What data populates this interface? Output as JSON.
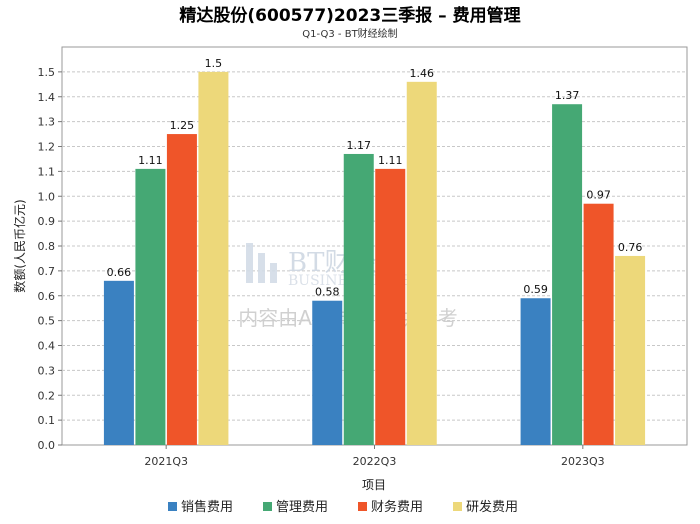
{
  "chart_data": {
    "type": "bar",
    "title": "精达股份(600577)2023三季报 – 费用管理",
    "subtitle": "Q1-Q3 - BT财经绘制",
    "xlabel": "项目",
    "ylabel": "数额(人民币亿元)",
    "ylim": [
      0,
      1.6
    ],
    "yticks": [
      "0.0",
      "0.1",
      "0.2",
      "0.3",
      "0.4",
      "0.5",
      "0.6",
      "0.7",
      "0.8",
      "0.9",
      "1.0",
      "1.1",
      "1.2",
      "1.3",
      "1.4",
      "1.5"
    ],
    "categories": [
      "2021Q3",
      "2022Q3",
      "2023Q3"
    ],
    "series": [
      {
        "name": "销售费用",
        "color": "#3a81c1",
        "values": [
          0.66,
          0.58,
          0.59
        ],
        "labels": [
          "0.66",
          "0.58",
          "0.59"
        ]
      },
      {
        "name": "管理费用",
        "color": "#45a874",
        "values": [
          1.11,
          1.17,
          1.37
        ],
        "labels": [
          "1.11",
          "1.17",
          "1.37"
        ]
      },
      {
        "name": "财务费用",
        "color": "#ef5529",
        "values": [
          1.25,
          1.11,
          0.97
        ],
        "labels": [
          "1.25",
          "1.11",
          "0.97"
        ]
      },
      {
        "name": "研发费用",
        "color": "#edd87a",
        "values": [
          1.5,
          1.46,
          0.76
        ],
        "labels": [
          "1.5",
          "1.46",
          "0.76"
        ]
      }
    ],
    "grid": true,
    "legend_position": "bottom"
  },
  "watermark": {
    "brand": "BT财经",
    "brand_en": "BUSINESS TIMES",
    "notice": "内容由AI生成，仅供参考"
  }
}
